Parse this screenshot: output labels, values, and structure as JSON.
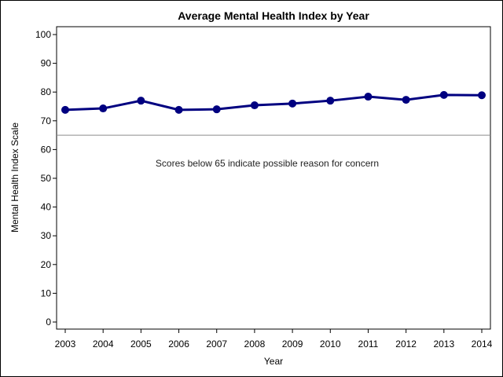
{
  "chart_data": {
    "type": "line",
    "title": "Average Mental Health Index by Year",
    "xlabel": "Year",
    "ylabel": "Mental Health Index Scale",
    "x": [
      2003,
      2004,
      2005,
      2006,
      2007,
      2008,
      2009,
      2010,
      2011,
      2012,
      2013,
      2014
    ],
    "series": [
      {
        "values": [
          73.8,
          74.3,
          77.0,
          73.8,
          74.0,
          75.4,
          76.0,
          77.0,
          78.4,
          77.3,
          79.0,
          78.9
        ]
      }
    ],
    "ylim": [
      0,
      100
    ],
    "yticks": [
      0,
      10,
      20,
      30,
      40,
      50,
      60,
      70,
      80,
      90,
      100
    ],
    "reference_line": {
      "y": 65
    },
    "annotation": "Scores below 65 indicate possible reason for concern",
    "grid": false,
    "legend": "none",
    "colors": {
      "line": "#000080",
      "marker": "#000080",
      "reference": "#8c8c8c"
    }
  }
}
